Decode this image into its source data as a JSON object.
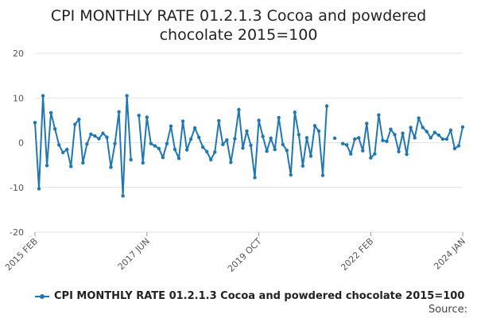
{
  "chart_data": {
    "type": "line",
    "title": "CPI MONTHLY RATE 01.2.1.3 Cocoa and powdered\nchocolate 2015=100",
    "xlabel": "",
    "ylabel": "",
    "ylim": [
      -20,
      20
    ],
    "yticks": [
      20,
      10,
      0,
      -10,
      -20
    ],
    "xtick_labels": [
      "2015 FEB",
      "2017 JUN",
      "2019 OCT",
      "2022 FEB",
      "2024 JAN"
    ],
    "grid": true,
    "legend_position": "bottom",
    "color": "#1f77b4",
    "x": [
      "2015 FEB",
      "2015 MAR",
      "2015 APR",
      "2015 MAY",
      "2015 JUN",
      "2015 JUL",
      "2015 AUG",
      "2015 SEP",
      "2015 OCT",
      "2015 NOV",
      "2015 DEC",
      "2016 JAN",
      "2016 FEB",
      "2016 MAR",
      "2016 APR",
      "2016 MAY",
      "2016 JUN",
      "2016 JUL",
      "2016 AUG",
      "2016 SEP",
      "2016 OCT",
      "2016 NOV",
      "2016 DEC",
      "2017 JAN",
      "2017 FEB",
      "2017 MAR",
      "2017 APR",
      "2017 MAY",
      "2017 JUN",
      "2017 JUL",
      "2017 AUG",
      "2017 SEP",
      "2017 OCT",
      "2017 NOV",
      "2017 DEC",
      "2018 JAN",
      "2018 FEB",
      "2018 MAR",
      "2018 APR",
      "2018 MAY",
      "2018 JUN",
      "2018 JUL",
      "2018 AUG",
      "2018 SEP",
      "2018 OCT",
      "2018 NOV",
      "2018 DEC",
      "2019 JAN",
      "2019 FEB",
      "2019 MAR",
      "2019 APR",
      "2019 MAY",
      "2019 JUN",
      "2019 JUL",
      "2019 AUG",
      "2019 SEP",
      "2019 OCT",
      "2019 NOV",
      "2019 DEC",
      "2020 JAN",
      "2020 FEB",
      "2020 MAR",
      "2020 APR",
      "2020 MAY",
      "2020 JUN",
      "2020 JUL",
      "2020 AUG",
      "2020 SEP",
      "2020 OCT",
      "2020 NOV",
      "2020 DEC",
      "2021 JAN",
      "2021 FEB",
      "2021 MAR",
      "2021 APR",
      "2021 MAY",
      "2021 JUN",
      "2021 JUL",
      "2021 AUG",
      "2021 SEP",
      "2021 OCT",
      "2021 NOV",
      "2021 DEC",
      "2022 JAN",
      "2022 FEB",
      "2022 MAR",
      "2022 APR",
      "2022 MAY",
      "2022 JUN",
      "2022 JUL",
      "2022 AUG",
      "2022 SEP",
      "2022 OCT",
      "2022 NOV",
      "2022 DEC",
      "2023 JAN",
      "2023 FEB",
      "2023 MAR",
      "2023 APR",
      "2023 MAY",
      "2023 JUN",
      "2023 JUL",
      "2023 AUG",
      "2023 SEP",
      "2023 OCT",
      "2023 NOV",
      "2023 DEC",
      "2024 JAN"
    ],
    "series": [
      {
        "name": "CPI MONTHLY RATE 01.2.1.3 Cocoa and powdered chocolate 2015=100",
        "values": [
          4.5,
          -10.3,
          10.5,
          -5.1,
          6.7,
          3.1,
          -0.5,
          -2.2,
          -1.5,
          -5.3,
          4.1,
          5.2,
          -4.5,
          -0.3,
          1.9,
          1.5,
          0.9,
          2.1,
          1.2,
          -5.5,
          -0.2,
          6.9,
          -11.9,
          10.5,
          -3.8,
          null,
          6.1,
          -4.5,
          5.7,
          -0.2,
          -0.7,
          -1.3,
          -3.3,
          -0.2,
          3.7,
          -1.5,
          -3.5,
          4.8,
          -1.6,
          0.8,
          3.3,
          1.2,
          -1.0,
          -2.0,
          -3.8,
          -2.1,
          4.9,
          -0.4,
          0.6,
          -4.4,
          0.9,
          7.4,
          -1.2,
          2.6,
          -0.6,
          -7.8,
          5.0,
          1.4,
          -1.9,
          1.0,
          -1.5,
          5.6,
          -0.4,
          -1.7,
          -7.2,
          6.8,
          1.8,
          -5.2,
          1.1,
          -3.0,
          3.8,
          2.6,
          -7.3,
          8.2,
          null,
          1.0,
          null,
          -0.2,
          -0.5,
          -2.5,
          0.8,
          1.1,
          -1.8,
          4.3,
          -3.4,
          -2.5,
          6.2,
          0.5,
          0.3,
          3.0,
          1.8,
          -2.0,
          2.1,
          -2.6,
          3.4,
          1.1,
          5.5,
          3.4,
          2.5,
          1.1,
          2.3,
          1.7,
          0.8,
          0.8,
          2.8,
          -1.3,
          -0.7,
          3.5
        ]
      }
    ]
  },
  "legend": {
    "label": "CPI MONTHLY RATE 01.2.1.3 Cocoa and powdered chocolate 2015=100"
  },
  "source": {
    "label": "Source:"
  }
}
